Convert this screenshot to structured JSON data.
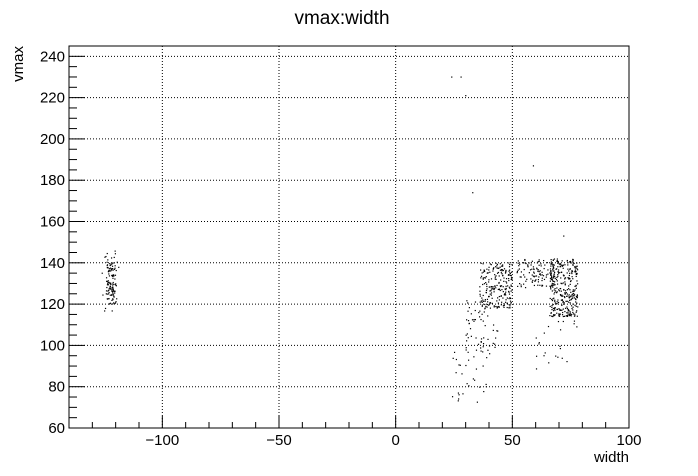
{
  "chart_data": {
    "type": "scatter",
    "title": "vmax:width",
    "xlabel": "width",
    "ylabel": "vmax",
    "xlim": [
      -140,
      100
    ],
    "ylim": [
      60,
      245
    ],
    "x_ticks": [
      -100,
      -50,
      0,
      50,
      100
    ],
    "x_tick_labels": [
      "−100",
      "−50",
      "0",
      "50",
      "100"
    ],
    "y_ticks": [
      60,
      80,
      100,
      120,
      140,
      160,
      180,
      200,
      220,
      240
    ],
    "y_tick_labels": [
      "60",
      "80",
      "100",
      "120",
      "140",
      "160",
      "180",
      "200",
      "220",
      "240"
    ],
    "grid": true,
    "marker_color": "#000000",
    "series": [
      {
        "clusters": [
          {
            "x": [
              -124,
              -120
            ],
            "y": [
              120,
              140
            ],
            "n": 110
          },
          {
            "x": [
              -126,
              -118
            ],
            "y": [
              114,
              146
            ],
            "n": 25
          },
          {
            "x": [
              36,
              50
            ],
            "y": [
              118,
              140
            ],
            "n": 220
          },
          {
            "x": [
              30,
              44
            ],
            "y": [
              96,
              124
            ],
            "n": 60
          },
          {
            "x": [
              24,
              40
            ],
            "y": [
              72,
              100
            ],
            "n": 30
          },
          {
            "x": [
              52,
              68
            ],
            "y": [
              128,
              142
            ],
            "n": 120
          },
          {
            "x": [
              66,
              78
            ],
            "y": [
              114,
              142
            ],
            "n": 320
          },
          {
            "x": [
              60,
              78
            ],
            "y": [
              86,
              116
            ],
            "n": 25
          }
        ],
        "points": [
          [
            24,
            230
          ],
          [
            28,
            230
          ],
          [
            30,
            221
          ],
          [
            33,
            174
          ],
          [
            59,
            187
          ],
          [
            72,
            153
          ]
        ]
      }
    ]
  }
}
